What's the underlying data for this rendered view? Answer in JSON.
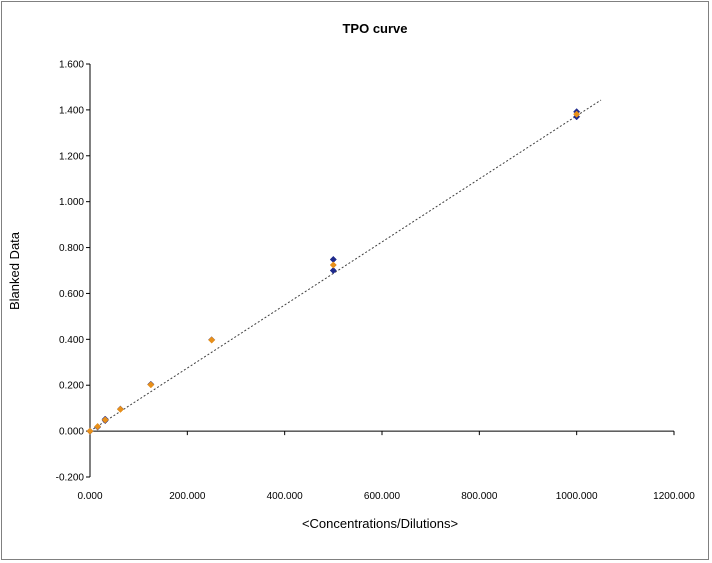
{
  "chart_data": {
    "type": "scatter",
    "title": "TPO curve",
    "xlabel": "<Concentrations/Dilutions>",
    "ylabel": "Blanked Data",
    "xlim": [
      0,
      1200
    ],
    "ylim": [
      -0.2,
      1.6
    ],
    "x_ticks": [
      "0.000",
      "200.000",
      "400.000",
      "600.000",
      "800.000",
      "1000.000",
      "1200.000"
    ],
    "y_ticks": [
      "-0.200",
      "0.000",
      "0.200",
      "0.400",
      "0.600",
      "0.800",
      "1.000",
      "1.200",
      "1.400",
      "1.600"
    ],
    "grid": false,
    "legend": "none",
    "series": [
      {
        "marker": "diamond",
        "color": "#1f2a8c",
        "points": [
          [
            0,
            0.0
          ],
          [
            15.6,
            0.018
          ],
          [
            31.25,
            0.052
          ],
          [
            31.25,
            0.046
          ],
          [
            62.5,
            0.096
          ],
          [
            125,
            0.204
          ],
          [
            250,
            0.398
          ],
          [
            500,
            0.748
          ],
          [
            500,
            0.7
          ],
          [
            1000,
            1.392
          ],
          [
            1000,
            1.37
          ]
        ]
      },
      {
        "marker": "diamond",
        "color": "#e8901a",
        "points": [
          [
            0,
            0.0
          ],
          [
            15.6,
            0.02
          ],
          [
            31.25,
            0.049
          ],
          [
            62.5,
            0.095
          ],
          [
            125,
            0.202
          ],
          [
            250,
            0.397
          ],
          [
            500,
            0.724
          ],
          [
            1000,
            1.381
          ]
        ]
      }
    ],
    "trendline": {
      "style": "dashed",
      "color": "#404040",
      "from": [
        0,
        0.0
      ],
      "to": [
        1050,
        1.443
      ]
    }
  }
}
